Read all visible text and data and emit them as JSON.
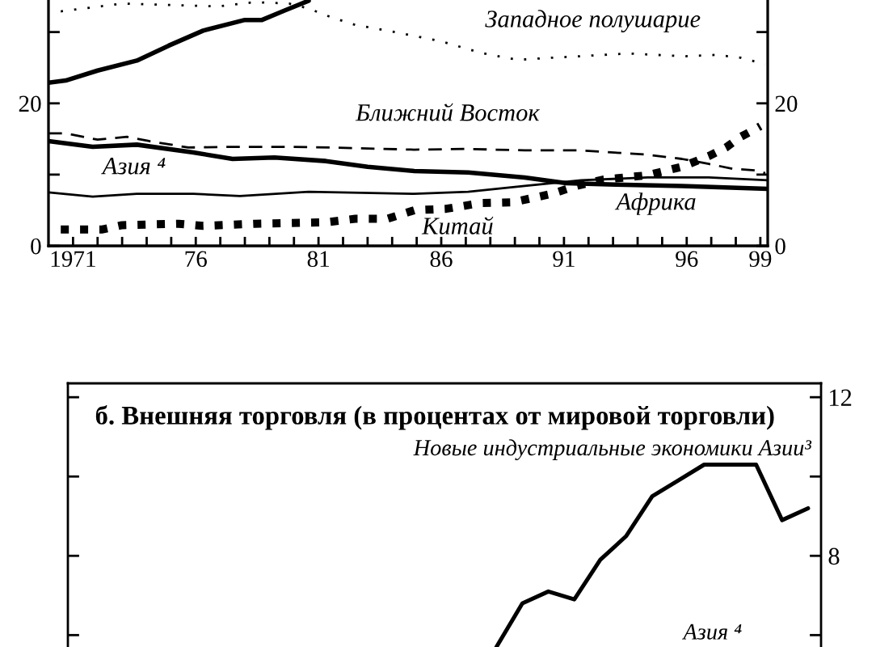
{
  "chart_data": [
    {
      "type": "line",
      "xlim": [
        1970,
        1999.3
      ],
      "xticks": [
        1971,
        {
          "value": 1972,
          "label": null
        },
        {
          "value": 1973,
          "label": null
        },
        {
          "value": 1974,
          "label": null
        },
        {
          "value": 1975,
          "label": null
        },
        {
          "value": 1976,
          "label": "76"
        },
        {
          "value": 1977,
          "label": null
        },
        {
          "value": 1978,
          "label": null
        },
        {
          "value": 1979,
          "label": null
        },
        {
          "value": 1980,
          "label": null
        },
        {
          "value": 1981,
          "label": "81"
        },
        {
          "value": 1982,
          "label": null
        },
        {
          "value": 1983,
          "label": null
        },
        {
          "value": 1984,
          "label": null
        },
        {
          "value": 1985,
          "label": null
        },
        {
          "value": 1986,
          "label": "86"
        },
        {
          "value": 1987,
          "label": null
        },
        {
          "value": 1988,
          "label": null
        },
        {
          "value": 1989,
          "label": null
        },
        {
          "value": 1990,
          "label": null
        },
        {
          "value": 1991,
          "label": "91"
        },
        {
          "value": 1992,
          "label": null
        },
        {
          "value": 1993,
          "label": null
        },
        {
          "value": 1994,
          "label": null
        },
        {
          "value": 1995,
          "label": null
        },
        {
          "value": 1996,
          "label": "96"
        },
        {
          "value": 1997,
          "label": null
        },
        {
          "value": 1998,
          "label": null
        },
        {
          "value": 1999,
          "label": "99"
        }
      ],
      "ylim": [
        0,
        34.5
      ],
      "yticks": [
        0,
        {
          "value": 10,
          "label": null
        },
        20,
        {
          "value": 30,
          "label": null
        }
      ],
      "y2lim": [
        0,
        34.5
      ],
      "y2ticks": [
        0,
        {
          "value": 10,
          "label": null
        },
        20,
        {
          "value": 30,
          "label": null
        }
      ],
      "series": [
        {
          "color": "#000000",
          "line_style": "solid",
          "x": [
            1970,
            1970.7,
            1972,
            1973.6,
            1974.9,
            1976.3,
            1978,
            1978.7,
            1979.6,
            1980.6
          ],
          "values": [
            22.9,
            23.2,
            24.6,
            26.0,
            28.1,
            30.2,
            31.7,
            31.7,
            33.0,
            34.4
          ]
        },
        {
          "color": "#000000",
          "line_style": "dotted",
          "x": [
            1970.5,
            1973,
            1976.9,
            1978.4,
            1979.8,
            1980.6,
            1981.5,
            1982.5,
            1983.8,
            1985,
            1986,
            1987.6,
            1989.1,
            1990.5,
            1991.6,
            1993.6,
            1995.9,
            1997.2,
            1998.2,
            1999.2
          ],
          "values": [
            32.9,
            34.0,
            33.6,
            34.2,
            34.0,
            33.3,
            32.1,
            31.0,
            30.2,
            29.4,
            28.7,
            27.1,
            26.1,
            26.4,
            26.6,
            27.0,
            26.6,
            26.8,
            26.4,
            25.5
          ]
        },
        {
          "color": "#000000",
          "line_style": "dashed",
          "x": [
            1970,
            1970.7,
            1972,
            1973.2,
            1974.1,
            1975.7,
            1977.4,
            1979.5,
            1981.5,
            1984.9,
            1987.1,
            1989.4,
            1991.6,
            1994.4,
            1995.8,
            1996.9,
            1997.9,
            1998.8,
            1999.2
          ],
          "values": [
            15.8,
            15.8,
            14.9,
            15.3,
            14.7,
            13.8,
            13.9,
            13.9,
            13.8,
            13.5,
            13.6,
            13.4,
            13.4,
            12.8,
            12.2,
            11.5,
            10.8,
            10.6,
            10.2
          ]
        },
        {
          "color": "#000000",
          "line_style": "solid",
          "x": [
            1970,
            1971.8,
            1973.6,
            1975.9,
            1977.5,
            1979.2,
            1981.3,
            1983,
            1984.9,
            1987.1,
            1989.4,
            1991.1,
            1993.1,
            1995.8,
            1999.3
          ],
          "values": [
            14.7,
            13.9,
            14.2,
            13.1,
            12.2,
            12.4,
            11.9,
            11.1,
            10.5,
            10.3,
            9.6,
            8.8,
            8.6,
            8.4,
            8.0
          ]
        },
        {
          "color": "#000000",
          "line_style": "solid",
          "x": [
            1970,
            1971.8,
            1973.6,
            1975.9,
            1977.8,
            1980.6,
            1984.9,
            1987.1,
            1989.4,
            1991.7,
            1994.4,
            1996.9,
            1999.3
          ],
          "values": [
            7.5,
            6.9,
            7.3,
            7.3,
            7.0,
            7.6,
            7.3,
            7.6,
            8.4,
            9.2,
            9.6,
            9.6,
            9.2
          ]
        },
        {
          "color": "#000000",
          "line_style": "dotted",
          "x": [
            1970.5,
            1972.2,
            1973,
            1975.3,
            1976.3,
            1978.4,
            1981.3,
            1982.5,
            1983.8,
            1984.9,
            1986.2,
            1987.6,
            1988.9,
            1990.5,
            1991.5,
            1992.6,
            1994.4,
            1995.8,
            1996.9,
            1997.6,
            1998.2,
            1998.8,
            1999
          ],
          "values": [
            2.3,
            2.3,
            2.9,
            3.1,
            2.8,
            3.1,
            3.3,
            3.8,
            3.8,
            5.0,
            5.2,
            6.0,
            6.1,
            7.3,
            8.4,
            9.3,
            9.9,
            11.1,
            12.6,
            13.8,
            15.3,
            16.4,
            16.8
          ]
        }
      ],
      "annotations": [
        "Западное полушарие",
        "Ближний Восток",
        "Азия ⁴",
        "Африка",
        "Китай"
      ]
    },
    {
      "type": "line",
      "title": "б. Внешняя торговля (в процентах от мировой торговли)",
      "categories": [
        null,
        null,
        null,
        null,
        null,
        null,
        null,
        null,
        null,
        null,
        null,
        null,
        null,
        null,
        null,
        null,
        null,
        null,
        null,
        null,
        null,
        null,
        null,
        null,
        null,
        null,
        null,
        null,
        null
      ],
      "ylim": [
        5.7,
        12.35
      ],
      "yticks": [
        12,
        {
          "value": 10,
          "label": null
        },
        8,
        {
          "value": 6,
          "label": null
        }
      ],
      "tick_labels": "y",
      "series": [
        {
          "color": "#000000",
          "line_style": "solid",
          "values": [
            null,
            null,
            null,
            null,
            null,
            null,
            null,
            null,
            null,
            null,
            null,
            null,
            null,
            null,
            null,
            null,
            5.7,
            6.8,
            7.1,
            6.9,
            7.9,
            8.5,
            9.5,
            9.9,
            10.3,
            10.3,
            10.3,
            8.9,
            9.2
          ]
        }
      ],
      "annotations": [
        "Новые индустриальные экономики Азии³",
        "Азия ⁴"
      ]
    }
  ]
}
